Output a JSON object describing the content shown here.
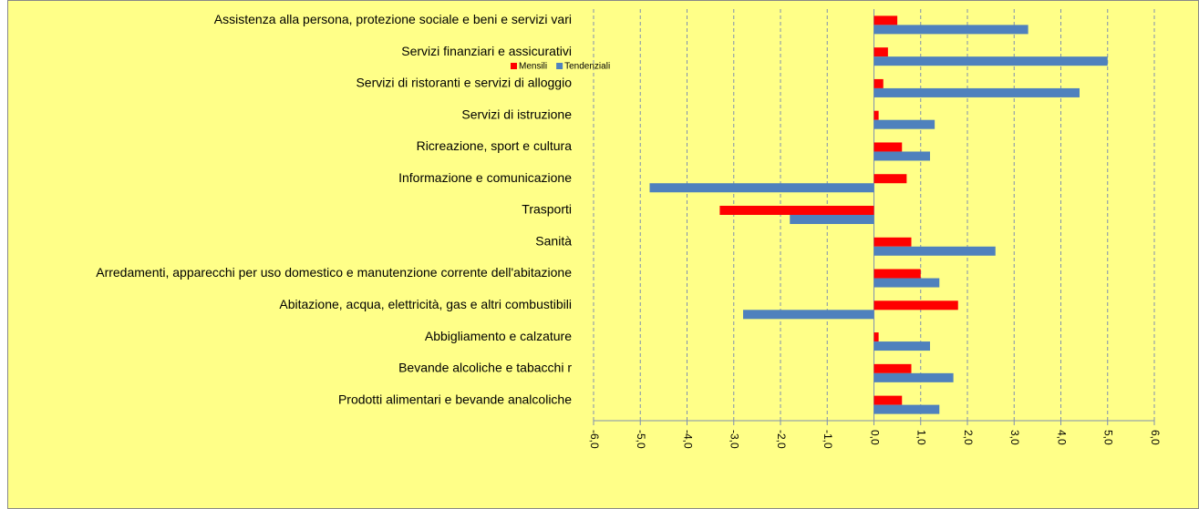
{
  "chart_data": {
    "type": "hbar",
    "categories": [
      "Assistenza alla persona, protezione sociale e beni e servizi vari",
      "Servizi finanziari e assicurativi",
      "Servizi di ristoranti e servizi di alloggio",
      "Servizi di istruzione",
      "Ricreazione, sport e cultura",
      "Informazione e comunicazione",
      "Trasporti",
      "Sanità",
      "Arredamenti, apparecchi per uso domestico e manutenzione corrente dell'abitazione",
      "Abitazione, acqua, elettricità, gas e altri combustibili",
      "Abbigliamento e calzature",
      "Bevande alcoliche e tabacchi r",
      "Prodotti alimentari e bevande analcoliche"
    ],
    "series": [
      {
        "name": "Mensili",
        "color": "#ff0000",
        "values": [
          0.5,
          0.3,
          0.2,
          0.1,
          0.6,
          0.7,
          -3.3,
          0.8,
          1.0,
          1.8,
          0.1,
          0.8,
          0.6
        ]
      },
      {
        "name": "Tendenziali",
        "color": "#4f81bd",
        "values": [
          3.3,
          5.0,
          4.4,
          1.3,
          1.2,
          -4.8,
          -1.8,
          2.6,
          1.4,
          -2.8,
          1.2,
          1.7,
          1.4
        ]
      }
    ],
    "xlim": [
      -6,
      6
    ],
    "xticks": [
      {
        "value": -6,
        "label": "-6,0"
      },
      {
        "value": -5,
        "label": "-5,0"
      },
      {
        "value": -4,
        "label": "-4,0"
      },
      {
        "value": -3,
        "label": "-3,0"
      },
      {
        "value": -2,
        "label": "-2,0"
      },
      {
        "value": -1,
        "label": "-1,0"
      },
      {
        "value": 0,
        "label": "0,0"
      },
      {
        "value": 1,
        "label": "1,0"
      },
      {
        "value": 2,
        "label": "2,0"
      },
      {
        "value": 3,
        "label": "3,0"
      },
      {
        "value": 4,
        "label": "4,0"
      },
      {
        "value": 5,
        "label": "5,0"
      },
      {
        "value": 6,
        "label": "6,0"
      }
    ],
    "grid": true
  }
}
